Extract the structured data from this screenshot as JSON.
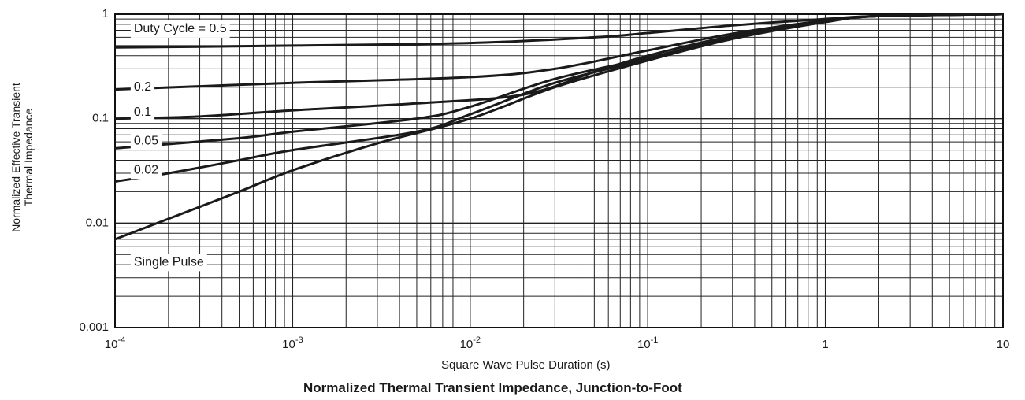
{
  "chart_data": {
    "type": "line",
    "title": "Normalized Thermal Transient Impedance, Junction-to-Foot",
    "xlabel": "Square Wave Pulse Duration (s)",
    "ylabel_lines": [
      "Normalized Effective Transient",
      "Thermal Impedance"
    ],
    "x_scale": "log",
    "y_scale": "log",
    "xlim": [
      0.0001,
      10
    ],
    "ylim": [
      0.001,
      1
    ],
    "x_tick_labels": [
      {
        "base": "10",
        "exp": "-4"
      },
      {
        "base": "10",
        "exp": "-3"
      },
      {
        "base": "10",
        "exp": "-2"
      },
      {
        "base": "10",
        "exp": "-1"
      },
      {
        "base": "1",
        "exp": ""
      },
      {
        "base": "10",
        "exp": ""
      }
    ],
    "y_tick_labels": [
      "0.001",
      "0.01",
      "0.1",
      "1"
    ],
    "grid": true,
    "series": [
      {
        "name": "Duty Cycle = 0.5",
        "x": [
          0.0001,
          0.001,
          0.01,
          0.05,
          0.1,
          0.3,
          1,
          2,
          10
        ],
        "y": [
          0.48,
          0.5,
          0.53,
          0.6,
          0.66,
          0.78,
          0.9,
          0.96,
          1.0
        ]
      },
      {
        "name": "0.2",
        "x": [
          0.0001,
          0.001,
          0.01,
          0.03,
          0.1,
          0.3,
          1,
          2,
          10
        ],
        "y": [
          0.19,
          0.22,
          0.25,
          0.3,
          0.45,
          0.65,
          0.87,
          0.96,
          1.0
        ]
      },
      {
        "name": "0.1",
        "x": [
          0.0001,
          0.0003,
          0.001,
          0.005,
          0.02,
          0.05,
          0.1,
          0.3,
          1,
          2,
          10
        ],
        "y": [
          0.1,
          0.105,
          0.12,
          0.14,
          0.17,
          0.28,
          0.4,
          0.62,
          0.86,
          0.96,
          1.0
        ]
      },
      {
        "name": "0.05",
        "x": [
          0.0001,
          0.0005,
          0.001,
          0.005,
          0.01,
          0.03,
          0.1,
          0.3,
          1,
          2,
          10
        ],
        "y": [
          0.052,
          0.065,
          0.075,
          0.1,
          0.13,
          0.24,
          0.38,
          0.6,
          0.85,
          0.96,
          1.0
        ]
      },
      {
        "name": "0.02",
        "x": [
          0.0001,
          0.0002,
          0.0005,
          0.001,
          0.005,
          0.01,
          0.03,
          0.1,
          0.3,
          1,
          2,
          10
        ],
        "y": [
          0.025,
          0.03,
          0.04,
          0.05,
          0.075,
          0.11,
          0.22,
          0.37,
          0.59,
          0.85,
          0.96,
          1.0
        ]
      },
      {
        "name": "Single Pulse",
        "x": [
          0.0001,
          0.0002,
          0.0005,
          0.001,
          0.003,
          0.01,
          0.03,
          0.1,
          0.3,
          1,
          2,
          10
        ],
        "y": [
          0.007,
          0.011,
          0.02,
          0.032,
          0.058,
          0.1,
          0.2,
          0.36,
          0.58,
          0.84,
          0.96,
          1.0
        ]
      }
    ],
    "curve_labels": [
      {
        "text": "Duty Cycle = 0.5",
        "x": 0.00012,
        "y": 0.72
      },
      {
        "text": "0.2",
        "x": 0.00012,
        "y": 0.2
      },
      {
        "text": "0.1",
        "x": 0.00012,
        "y": 0.115
      },
      {
        "text": "0.05",
        "x": 0.00012,
        "y": 0.061
      },
      {
        "text": "0.02",
        "x": 0.00012,
        "y": 0.032
      },
      {
        "text": "Single Pulse",
        "x": 0.00012,
        "y": 0.0042
      }
    ]
  }
}
